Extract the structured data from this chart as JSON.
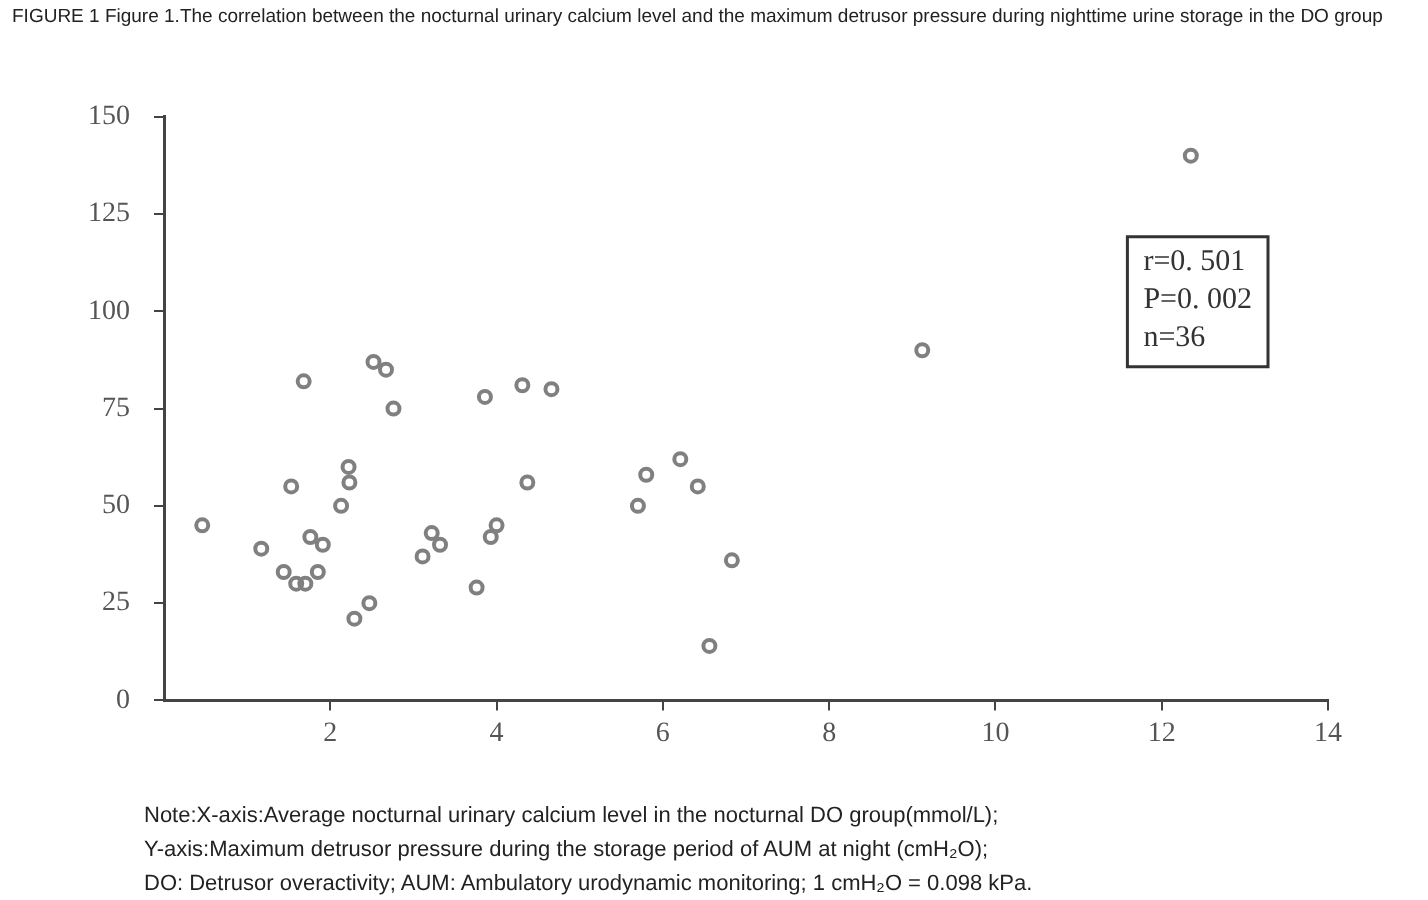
{
  "chart_data": {
    "type": "scatter",
    "title": "FIGURE 1 Figure 1.The correlation between the nocturnal urinary calcium level and the maximum detrusor pressure during nighttime urine storage in the DO group",
    "annotations": [
      "r=0. 501\nP=0. 002\nn=36",
      "Note:X-axis:Average nocturnal urinary calcium level in the nocturnal DO group(mmol/L);\nY-axis:Maximum detrusor pressure during the storage period of AUM at night (cmH₂O);\nDO: Detrusor overactivity; AUM: Ambulatory urodynamic monitoring; 1 cmH₂O = 0.098 kPa."
    ],
    "series": [
      {
        "color": "#808080",
        "x": [
          0.46,
          1.17,
          1.44,
          1.59,
          1.7,
          1.85,
          1.76,
          1.91,
          1.53,
          1.68,
          2.13,
          2.23,
          2.22,
          2.29,
          2.47,
          2.52,
          2.67,
          2.76,
          3.11,
          3.22,
          3.32,
          3.76,
          3.86,
          3.93,
          4.0,
          4.31,
          4.66,
          4.37,
          5.7,
          5.8,
          6.21,
          6.42,
          6.83,
          6.56,
          9.12,
          12.35
        ],
        "values": [
          45,
          39,
          33,
          30,
          30,
          33,
          42,
          40,
          55,
          82,
          50,
          56,
          60,
          21,
          25,
          87,
          85,
          75,
          37,
          43,
          40,
          29,
          78,
          42,
          45,
          81,
          80,
          56,
          50,
          58,
          62,
          55,
          36,
          14,
          90,
          140
        ]
      }
    ],
    "xlim": [
      0,
      14
    ],
    "xticks": [
      2,
      4,
      6,
      8,
      10,
      12,
      14
    ],
    "ylim": [
      0,
      150
    ],
    "yticks": [
      0,
      25,
      50,
      75,
      100,
      125,
      150
    ],
    "grid": false,
    "legend": false,
    "marker": "circle"
  }
}
